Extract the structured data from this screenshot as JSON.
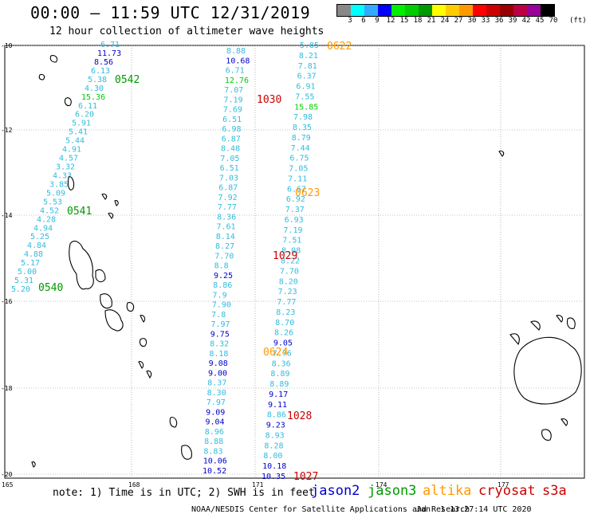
{
  "header": {
    "title": "00:00 – 11:59 UTC 12/31/2019",
    "subtitle": "12 hour collection of altimeter wave heights"
  },
  "legend": {
    "labels": [
      "3",
      "6",
      "9",
      "12",
      "15",
      "18",
      "21",
      "24",
      "27",
      "30",
      "33",
      "36",
      "39",
      "42",
      "45",
      "70"
    ],
    "unit": "(ft)",
    "colors": [
      "#888888",
      "#00ffff",
      "#33aaff",
      "#0000ff",
      "#00ee00",
      "#00cc00",
      "#009900",
      "#ffff00",
      "#ffcc00",
      "#ff9900",
      "#ff0000",
      "#cc0000",
      "#990000",
      "#bb0044",
      "#990099",
      "#000000"
    ]
  },
  "axes": {
    "lat_labels": [
      "-10",
      "-12",
      "-14",
      "-16",
      "-18",
      "-20"
    ],
    "lon_labels": [
      "165",
      "168",
      "171",
      "174",
      "177"
    ]
  },
  "satellite_colors": {
    "jason2": "#0000cc",
    "jason3": "#009900",
    "altika": "#ff9900",
    "cryosat": "#cc0000",
    "s3a": "#cc0000",
    "swh_light": "#33bbdd",
    "swh_green": "#00cc00"
  },
  "tracks": {
    "track_a": {
      "values": [
        "6.71",
        "11.73",
        "8.56",
        "6.13",
        "5.38",
        "4.30",
        "15.36",
        "6.11",
        "6.20",
        "5.91",
        "5.41",
        "5.44",
        "4.91",
        "4.57",
        "3.32",
        "4.33",
        "3.85",
        "5.09",
        "5.53",
        "4.52",
        "4.28",
        "4.94",
        "5.25",
        "4.84",
        "4.88",
        "5.17",
        "5.00",
        "5.31",
        "5.20"
      ],
      "times": [
        "0542",
        "0541",
        "0540"
      ]
    },
    "track_b": {
      "values": [
        "8.88",
        "10.68",
        "6.71",
        "12.76",
        "7.07",
        "7.19",
        "7.69",
        "6.51",
        "6.98",
        "6.87",
        "8.48",
        "7.05",
        "6.51",
        "7.03",
        "6.87",
        "7.92",
        "7.77",
        "8.36",
        "7.61",
        "8.14",
        "8.27",
        "7.70",
        "8.8",
        "9.25",
        "8.86",
        "7.9",
        "7.90",
        "7.8",
        "7.97",
        "9.75",
        "8.32",
        "8.18",
        "9.08",
        "9.00",
        "8.37",
        "8.30",
        "7.97",
        "9.09",
        "9.04",
        "8.96",
        "8.88",
        "8.83",
        "10.06",
        "10.52"
      ],
      "times": [
        "1030",
        "1029",
        "1028",
        "1027"
      ]
    },
    "track_c": {
      "values": [
        "5.85",
        "8.21",
        "7.81",
        "6.37",
        "6.91",
        "7.55",
        "15.85",
        "7.98",
        "8.35",
        "8.79",
        "7.44",
        "6.75",
        "7.05",
        "7.11",
        "6.67",
        "6.92",
        "7.37",
        "6.93",
        "7.19",
        "7.51",
        "8.08",
        "8.22",
        "7.70",
        "8.20",
        "7.23",
        "7.77",
        "8.23",
        "8.70",
        "8.26",
        "9.05",
        "7.76",
        "8.36",
        "8.89",
        "8.89",
        "9.17",
        "9.11",
        "8.86",
        "9.23",
        "8.93",
        "8.28",
        "8.00",
        "10.18",
        "10.35"
      ],
      "times": [
        "0622",
        "0623",
        "0624"
      ]
    }
  },
  "footer": {
    "note": "note: 1) Time is in UTC; 2) SWH is in feet",
    "jason2": "jason2",
    "jason3": "jason3",
    "altika": "altika",
    "cryosat": "cryosat",
    "s3a": "s3a",
    "credit": "NOAA/NESDIS Center for Satellite Applications and Research",
    "timestamp": "Jan  1 13:27:14 UTC 2020"
  }
}
